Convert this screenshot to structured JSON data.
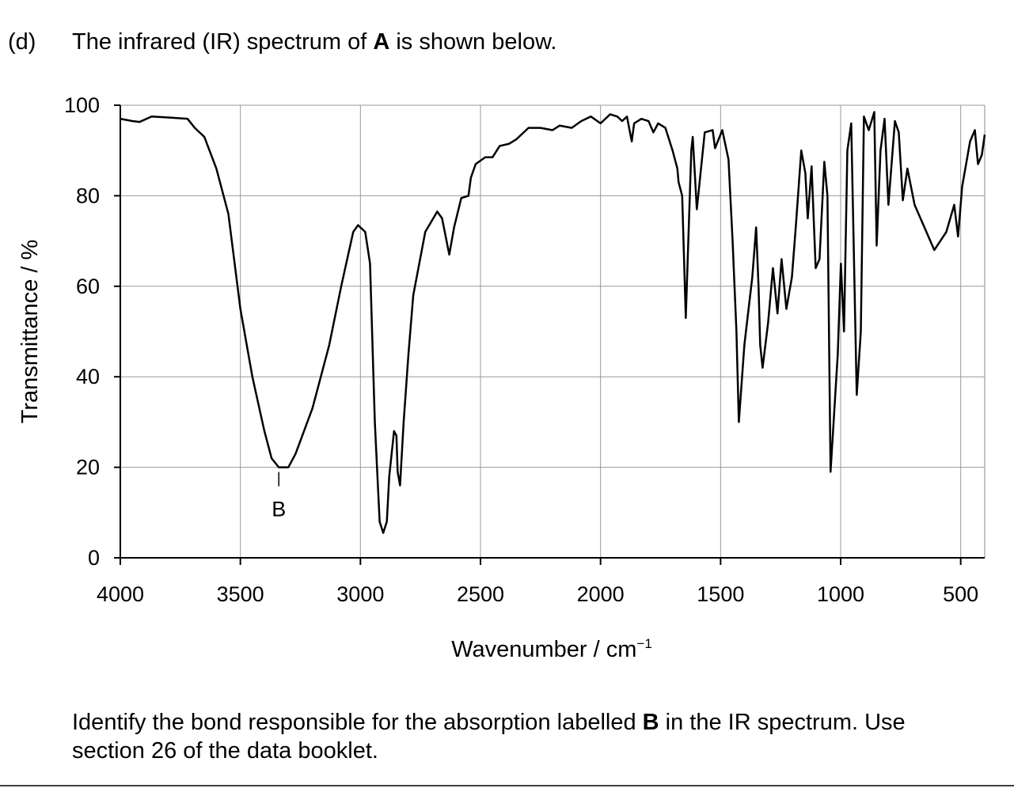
{
  "question": {
    "label": "(d)",
    "intro": [
      "The infrared (IR) spectrum of ",
      "A",
      " is shown below."
    ],
    "prompt": [
      "Identify the bond responsible for the absorption labelled ",
      "B",
      " in the IR spectrum. Use"
    ],
    "prompt_line2": "section 26 of the data booklet."
  },
  "chart_data": {
    "type": "line",
    "xlabel": "Wavenumber / cm",
    "xlabel_sup": "−1",
    "ylabel": "Transmittance / %",
    "x": [
      4000,
      3950,
      3920,
      3870,
      3800,
      3720,
      3690,
      3650,
      3600,
      3550,
      3500,
      3450,
      3400,
      3370,
      3340,
      3300,
      3270,
      3200,
      3130,
      3080,
      3030,
      3010,
      2980,
      2960,
      2940,
      2920,
      2905,
      2890,
      2880,
      2860,
      2850,
      2845,
      2835,
      2820,
      2800,
      2780,
      2730,
      2680,
      2660,
      2630,
      2610,
      2580,
      2550,
      2540,
      2520,
      2480,
      2450,
      2420,
      2380,
      2350,
      2300,
      2250,
      2200,
      2170,
      2120,
      2080,
      2040,
      2000,
      1980,
      1960,
      1930,
      1910,
      1890,
      1870,
      1860,
      1830,
      1800,
      1780,
      1760,
      1730,
      1700,
      1680,
      1675,
      1660,
      1645,
      1622,
      1616,
      1599,
      1566,
      1533,
      1523,
      1493,
      1467,
      1450,
      1434,
      1424,
      1401,
      1368,
      1352,
      1342,
      1335,
      1325,
      1302,
      1282,
      1263,
      1246,
      1226,
      1203,
      1187,
      1164,
      1147,
      1137,
      1121,
      1104,
      1088,
      1068,
      1055,
      1042,
      1012,
      999,
      986,
      972,
      956,
      946,
      933,
      916,
      903,
      883,
      860,
      850,
      834,
      817,
      801,
      774,
      758,
      741,
      722,
      692,
      610,
      560,
      527,
      511,
      494,
      461,
      441,
      428,
      412,
      400
    ],
    "values": [
      97,
      96.5,
      96.3,
      97.5,
      97.3,
      97,
      95,
      93,
      86,
      76,
      55,
      40,
      28,
      22,
      20,
      20,
      23,
      33,
      47,
      60,
      72,
      73.5,
      72,
      65,
      30,
      8,
      5.5,
      8,
      18,
      28,
      27,
      19,
      16,
      30,
      45,
      58,
      72,
      76.5,
      75,
      67,
      73,
      79.5,
      80,
      84,
      87,
      88.5,
      88.5,
      91,
      91.5,
      92.5,
      95,
      95,
      94.5,
      95.5,
      95,
      96.5,
      97.5,
      96,
      97,
      98,
      97.5,
      96.5,
      97.5,
      92,
      96,
      97,
      96.5,
      94,
      96,
      95,
      90,
      86,
      83,
      80,
      53,
      90,
      93,
      77,
      94,
      94.5,
      90.5,
      94.5,
      88,
      70,
      50,
      30,
      47,
      62,
      73,
      60,
      47,
      42,
      52,
      64,
      54,
      66,
      55,
      62,
      73,
      90,
      85,
      75,
      86.5,
      64,
      66,
      87.5,
      80,
      19,
      45,
      65,
      50,
      90,
      96,
      70,
      36,
      50,
      97.5,
      94.5,
      98.5,
      69,
      90,
      97,
      78,
      96.5,
      94,
      79,
      86,
      78,
      68,
      72,
      78,
      71,
      82,
      92,
      94.5,
      87,
      89,
      93.5
    ],
    "color": "#000000",
    "xlim": [
      4000,
      400
    ],
    "ylim": [
      0,
      100
    ],
    "xticks": [
      4000,
      3500,
      3000,
      2500,
      2000,
      1500,
      1000,
      500
    ],
    "yticks": [
      0,
      20,
      40,
      60,
      80,
      100
    ],
    "grid": true,
    "annotations": [
      {
        "text": "B",
        "x": 3340,
        "y": 20
      }
    ]
  }
}
